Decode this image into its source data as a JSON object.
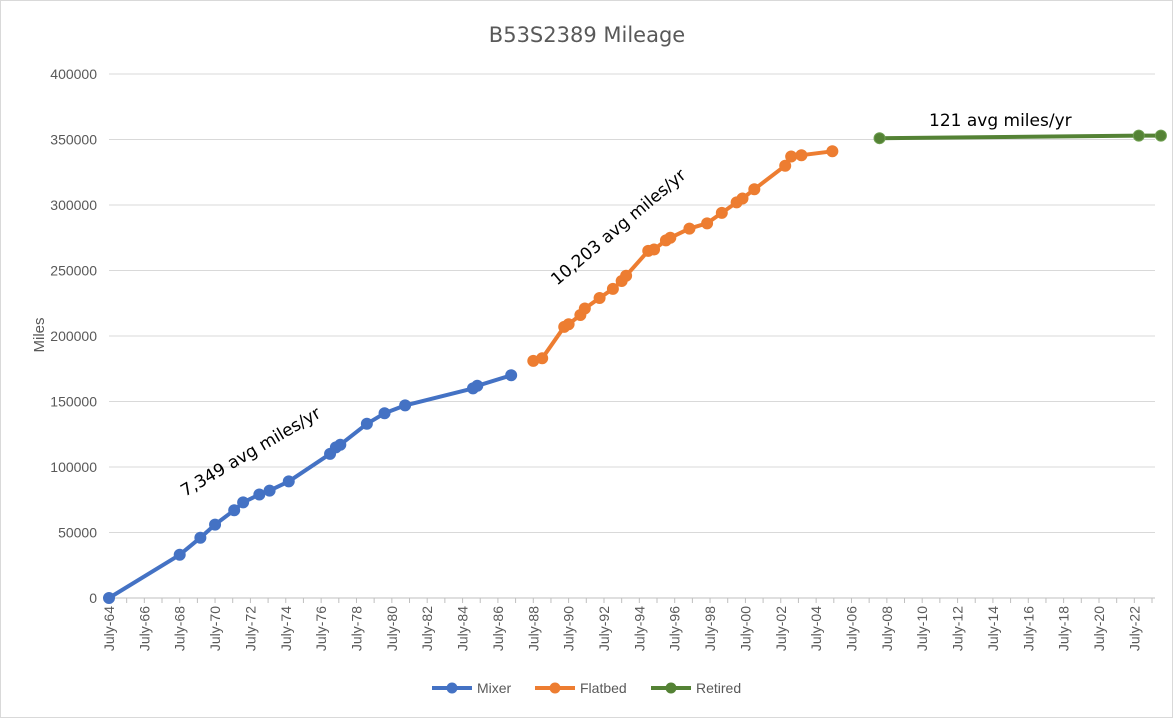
{
  "chart_data": {
    "type": "line",
    "title": "B53S2389 Mileage",
    "xlabel": "",
    "ylabel": "Miles",
    "ylim": [
      0,
      400000
    ],
    "yticks": [
      "0",
      "50000",
      "100000",
      "150000",
      "200000",
      "250000",
      "300000",
      "350000",
      "400000"
    ],
    "xlim": [
      "1964-07-01",
      "2023-09-01"
    ],
    "xticks": [
      "July-64",
      "July-66",
      "July-68",
      "July-70",
      "July-72",
      "July-74",
      "July-76",
      "July-78",
      "July-80",
      "July-82",
      "July-84",
      "July-86",
      "July-88",
      "July-90",
      "July-92",
      "July-94",
      "July-96",
      "July-98",
      "July-00",
      "July-02",
      "July-04",
      "July-06",
      "July-08",
      "July-10",
      "July-12",
      "July-14",
      "July-16",
      "July-18",
      "July-20",
      "July-22"
    ],
    "grid": "horizontal",
    "legend": "bottom",
    "series": [
      {
        "name": "Mixer",
        "color": "#4472c4",
        "points": [
          [
            "1964-07-01",
            0
          ],
          [
            "1968-07-01",
            33000
          ],
          [
            "1969-09-01",
            46000
          ],
          [
            "1970-07-01",
            56000
          ],
          [
            "1971-08-01",
            67000
          ],
          [
            "1972-02-01",
            73000
          ],
          [
            "1973-01-01",
            79000
          ],
          [
            "1973-08-01",
            82000
          ],
          [
            "1974-09-01",
            89000
          ],
          [
            "1977-01-01",
            110000
          ],
          [
            "1977-05-01",
            115000
          ],
          [
            "1977-08-01",
            117000
          ],
          [
            "1979-02-01",
            133000
          ],
          [
            "1980-02-01",
            141000
          ],
          [
            "1981-04-01",
            147000
          ],
          [
            "1985-02-01",
            160000
          ],
          [
            "1985-05-01",
            162000
          ],
          [
            "1987-04-01",
            170000
          ]
        ]
      },
      {
        "name": "Flatbed",
        "color": "#ed7d31",
        "points": [
          [
            "1988-07-01",
            181000
          ],
          [
            "1989-01-01",
            183000
          ],
          [
            "1990-04-01",
            207000
          ],
          [
            "1990-07-01",
            209000
          ],
          [
            "1991-03-01",
            216000
          ],
          [
            "1991-06-01",
            221000
          ],
          [
            "1992-04-01",
            229000
          ],
          [
            "1993-01-01",
            236000
          ],
          [
            "1993-07-01",
            242000
          ],
          [
            "1993-10-01",
            246000
          ],
          [
            "1995-01-01",
            265000
          ],
          [
            "1995-05-01",
            266000
          ],
          [
            "1996-01-01",
            273000
          ],
          [
            "1996-04-01",
            275000
          ],
          [
            "1997-05-01",
            282000
          ],
          [
            "1998-05-01",
            286000
          ],
          [
            "1999-03-01",
            294000
          ],
          [
            "2000-01-01",
            302000
          ],
          [
            "2000-05-01",
            305000
          ],
          [
            "2001-01-01",
            312000
          ],
          [
            "2002-10-01",
            330000
          ],
          [
            "2003-02-01",
            337000
          ],
          [
            "2003-09-01",
            338000
          ],
          [
            "2005-06-01",
            341000
          ]
        ]
      },
      {
        "name": "Retired",
        "color": "#548235",
        "points": [
          [
            "2008-02-01",
            351000
          ],
          [
            "2022-10-01",
            353000
          ],
          [
            "2024-01-01",
            353000
          ]
        ]
      }
    ],
    "annotations": [
      "7,349 avg miles/yr",
      "10,203 avg miles/yr",
      "121 avg miles/yr"
    ]
  }
}
